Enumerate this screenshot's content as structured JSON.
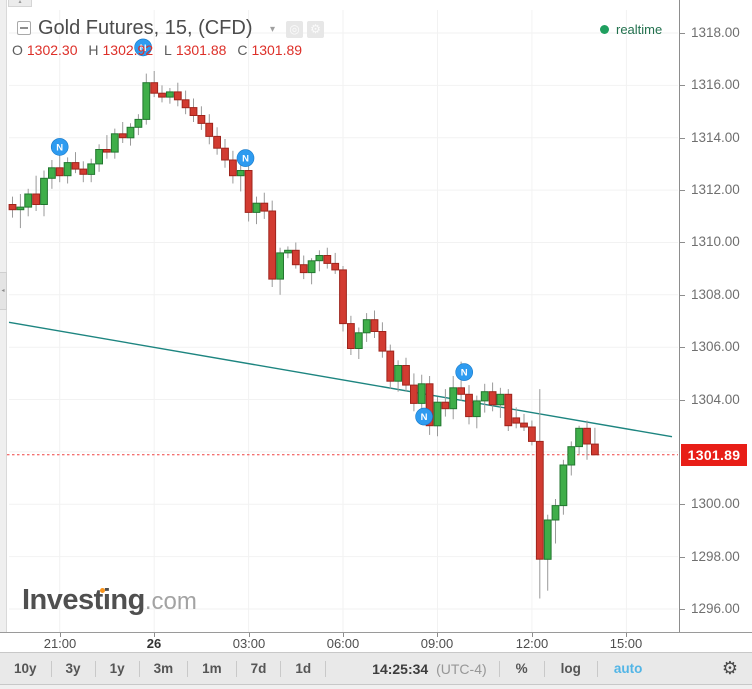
{
  "header": {
    "title": "Gold Futures, 15, (CFD)",
    "caret": "▾",
    "snapshot_glyph": "◎",
    "settings_glyph": "⚙",
    "ohlc": {
      "o_label": "O",
      "o_value": "1302.30",
      "h_label": "H",
      "h_value": "1302.92",
      "l_label": "L",
      "l_value": "1301.88",
      "c_label": "C",
      "c_value": "1301.89"
    },
    "realtime_label": "realtime"
  },
  "watermark": {
    "brand": "Investing",
    "domain": ".com"
  },
  "y_axis": {
    "labels": [
      "1318.00",
      "1316.00",
      "1314.00",
      "1312.00",
      "1310.00",
      "1308.00",
      "1306.00",
      "1304.00",
      "1300.00",
      "1298.00",
      "1296.00"
    ],
    "price_tag": "1301.89"
  },
  "x_axis": {
    "labels": [
      "21:00",
      "26",
      "03:00",
      "06:00",
      "09:00",
      "12:00",
      "15:00"
    ],
    "bold_index": 1
  },
  "toolbar": {
    "ranges": [
      "10y",
      "3y",
      "1y",
      "3m",
      "1m",
      "7d",
      "1d"
    ],
    "clock": "14:25:34",
    "timezone": "(UTC-4)",
    "percent_label": "%",
    "log_label": "log",
    "auto_label": "auto",
    "gear_glyph": "⚙"
  },
  "colors": {
    "up_fill": "#3fae49",
    "up_border": "#22762f",
    "down_fill": "#d23b31",
    "down_border": "#9e241c",
    "wick": "#9a9a9a",
    "grid": "#f2f2f2",
    "trendline": "#1d8580",
    "last_price_line": "#ef4040",
    "price_tag_bg": "#e81e17",
    "marker_fill": "#2e9bf0",
    "marker_border": "#1478c8",
    "auto_accent": "#52b5e6",
    "realtime_green": "#1f9f5f"
  },
  "chart_data": {
    "type": "candlestick",
    "symbol": "Gold Futures",
    "interval_minutes": 15,
    "market": "CFD",
    "first_candle_time": "19:30",
    "y_min": 1296,
    "y_max": 1318,
    "y_step": 2,
    "x_tick_labels": [
      "21:00",
      "26",
      "03:00",
      "06:00",
      "09:00",
      "12:00",
      "15:00"
    ],
    "last_price": 1301.89,
    "candles": [
      [
        1311.45,
        1311.75,
        1310.95,
        1311.25
      ],
      [
        1311.25,
        1311.85,
        1310.55,
        1311.35
      ],
      [
        1311.35,
        1312.05,
        1311.0,
        1311.85
      ],
      [
        1311.85,
        1312.55,
        1311.2,
        1311.45
      ],
      [
        1311.45,
        1312.75,
        1311.0,
        1312.45
      ],
      [
        1312.45,
        1313.15,
        1312.05,
        1312.85
      ],
      [
        1312.85,
        1313.35,
        1312.3,
        1312.55
      ],
      [
        1312.55,
        1313.25,
        1312.25,
        1313.05
      ],
      [
        1313.05,
        1313.45,
        1312.65,
        1312.8
      ],
      [
        1312.8,
        1313.1,
        1312.3,
        1312.6
      ],
      [
        1312.6,
        1313.2,
        1312.3,
        1313.0
      ],
      [
        1313.0,
        1313.75,
        1312.7,
        1313.55
      ],
      [
        1313.55,
        1314.1,
        1313.2,
        1313.45
      ],
      [
        1313.45,
        1314.35,
        1313.2,
        1314.15
      ],
      [
        1314.15,
        1314.6,
        1313.8,
        1314.0
      ],
      [
        1314.0,
        1314.55,
        1313.7,
        1314.4
      ],
      [
        1314.4,
        1314.9,
        1314.1,
        1314.7
      ],
      [
        1314.7,
        1316.45,
        1314.5,
        1316.1
      ],
      [
        1316.1,
        1316.55,
        1315.55,
        1315.7
      ],
      [
        1315.7,
        1316.0,
        1315.35,
        1315.55
      ],
      [
        1315.55,
        1315.9,
        1315.3,
        1315.75
      ],
      [
        1315.75,
        1316.1,
        1315.2,
        1315.45
      ],
      [
        1315.45,
        1315.8,
        1314.9,
        1315.15
      ],
      [
        1315.15,
        1315.5,
        1314.6,
        1314.85
      ],
      [
        1314.85,
        1315.2,
        1314.3,
        1314.55
      ],
      [
        1314.55,
        1314.9,
        1313.75,
        1314.05
      ],
      [
        1314.05,
        1314.4,
        1313.35,
        1313.6
      ],
      [
        1313.6,
        1313.95,
        1312.85,
        1313.15
      ],
      [
        1313.15,
        1313.5,
        1312.25,
        1312.55
      ],
      [
        1312.55,
        1313.05,
        1311.95,
        1312.75
      ],
      [
        1312.75,
        1313.1,
        1310.8,
        1311.15
      ],
      [
        1311.15,
        1311.75,
        1310.7,
        1311.5
      ],
      [
        1311.5,
        1311.9,
        1310.9,
        1311.2
      ],
      [
        1311.2,
        1311.6,
        1308.3,
        1308.6
      ],
      [
        1308.6,
        1309.8,
        1308.0,
        1309.6
      ],
      [
        1309.6,
        1309.85,
        1309.4,
        1309.7
      ],
      [
        1309.7,
        1310.0,
        1309.0,
        1309.15
      ],
      [
        1309.15,
        1309.5,
        1308.6,
        1308.85
      ],
      [
        1308.85,
        1309.4,
        1308.4,
        1309.3
      ],
      [
        1309.3,
        1309.7,
        1308.9,
        1309.5
      ],
      [
        1309.5,
        1309.8,
        1309.0,
        1309.2
      ],
      [
        1309.2,
        1309.6,
        1308.8,
        1308.95
      ],
      [
        1308.95,
        1309.1,
        1306.6,
        1306.9
      ],
      [
        1306.9,
        1307.2,
        1305.7,
        1305.95
      ],
      [
        1305.95,
        1306.75,
        1305.55,
        1306.55
      ],
      [
        1306.55,
        1307.3,
        1306.2,
        1307.05
      ],
      [
        1307.05,
        1307.4,
        1306.35,
        1306.6
      ],
      [
        1306.6,
        1306.95,
        1305.6,
        1305.85
      ],
      [
        1305.85,
        1306.1,
        1304.4,
        1304.7
      ],
      [
        1304.7,
        1305.5,
        1304.3,
        1305.3
      ],
      [
        1305.3,
        1305.6,
        1304.3,
        1304.55
      ],
      [
        1304.55,
        1305.0,
        1303.55,
        1303.85
      ],
      [
        1303.85,
        1304.95,
        1303.3,
        1304.6
      ],
      [
        1304.6,
        1304.9,
        1302.65,
        1303.0
      ],
      [
        1303.0,
        1304.1,
        1302.6,
        1303.9
      ],
      [
        1303.9,
        1304.4,
        1303.35,
        1303.65
      ],
      [
        1303.65,
        1304.9,
        1303.25,
        1304.45
      ],
      [
        1304.45,
        1305.45,
        1303.95,
        1304.2
      ],
      [
        1304.2,
        1304.55,
        1303.05,
        1303.35
      ],
      [
        1303.35,
        1304.15,
        1302.9,
        1303.95
      ],
      [
        1303.95,
        1304.6,
        1303.5,
        1304.3
      ],
      [
        1304.3,
        1304.65,
        1303.55,
        1303.8
      ],
      [
        1303.8,
        1304.45,
        1303.3,
        1304.2
      ],
      [
        1304.2,
        1304.4,
        1302.8,
        1303.0
      ],
      [
        1303.3,
        1303.7,
        1302.9,
        1303.1
      ],
      [
        1303.1,
        1303.45,
        1302.8,
        1302.95
      ],
      [
        1302.95,
        1303.2,
        1302.25,
        1302.4
      ],
      [
        1302.4,
        1304.4,
        1296.4,
        1297.9
      ],
      [
        1297.9,
        1299.6,
        1296.7,
        1299.4
      ],
      [
        1299.4,
        1300.2,
        1298.5,
        1299.95
      ],
      [
        1299.95,
        1301.7,
        1299.6,
        1301.5
      ],
      [
        1301.5,
        1302.4,
        1301.1,
        1302.2
      ],
      [
        1302.2,
        1303.0,
        1301.9,
        1302.9
      ],
      [
        1302.9,
        1303.2,
        1301.7,
        1302.3
      ],
      [
        1302.3,
        1302.92,
        1301.88,
        1301.89
      ]
    ],
    "news_markers": [
      {
        "t": 6,
        "price": 1313.65
      },
      {
        "t": 16.6,
        "price": 1317.45
      },
      {
        "t": 29.6,
        "price": 1313.22
      },
      {
        "t": 52.3,
        "price": 1303.35
      },
      {
        "t": 57.4,
        "price": 1305.05
      }
    ],
    "trendline": {
      "start_t": -0.45,
      "start_price": 1306.95,
      "end_t": 83.8,
      "end_price": 1302.58
    }
  }
}
